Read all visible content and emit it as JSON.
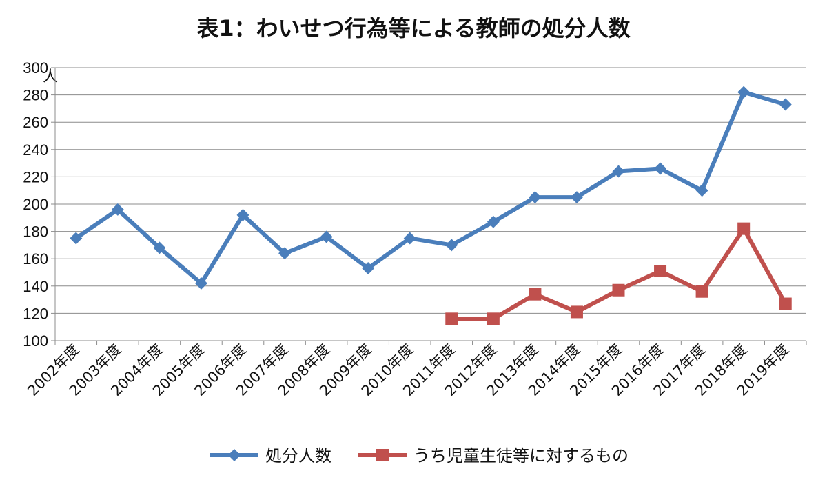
{
  "chart_data": {
    "type": "line",
    "title": "表1：わいせつ行為等による教師の処分人数",
    "ylabel": "人",
    "xlabel": "",
    "ylim": [
      100,
      300
    ],
    "yticks": [
      100,
      120,
      140,
      160,
      180,
      200,
      220,
      240,
      260,
      280,
      300
    ],
    "grid": true,
    "legend_position": "bottom",
    "categories": [
      "2002年度",
      "2003年度",
      "2004年度",
      "2005年度",
      "2006年度",
      "2007年度",
      "2008年度",
      "2009年度",
      "2010年度",
      "2011年度",
      "2012年度",
      "2013年度",
      "2014年度",
      "2015年度",
      "2016年度",
      "2017年度",
      "2018年度",
      "2019年度"
    ],
    "series": [
      {
        "name": "処分人数",
        "color": "#4a7ebb",
        "marker": "diamond",
        "values": [
          175,
          196,
          168,
          142,
          192,
          164,
          176,
          153,
          175,
          170,
          187,
          205,
          205,
          224,
          226,
          210,
          282,
          273
        ]
      },
      {
        "name": "うち児童生徒等に対するもの",
        "color": "#c0504d",
        "marker": "square",
        "values": [
          null,
          null,
          null,
          null,
          null,
          null,
          null,
          null,
          null,
          116,
          116,
          134,
          121,
          137,
          151,
          136,
          182,
          127
        ]
      }
    ]
  }
}
